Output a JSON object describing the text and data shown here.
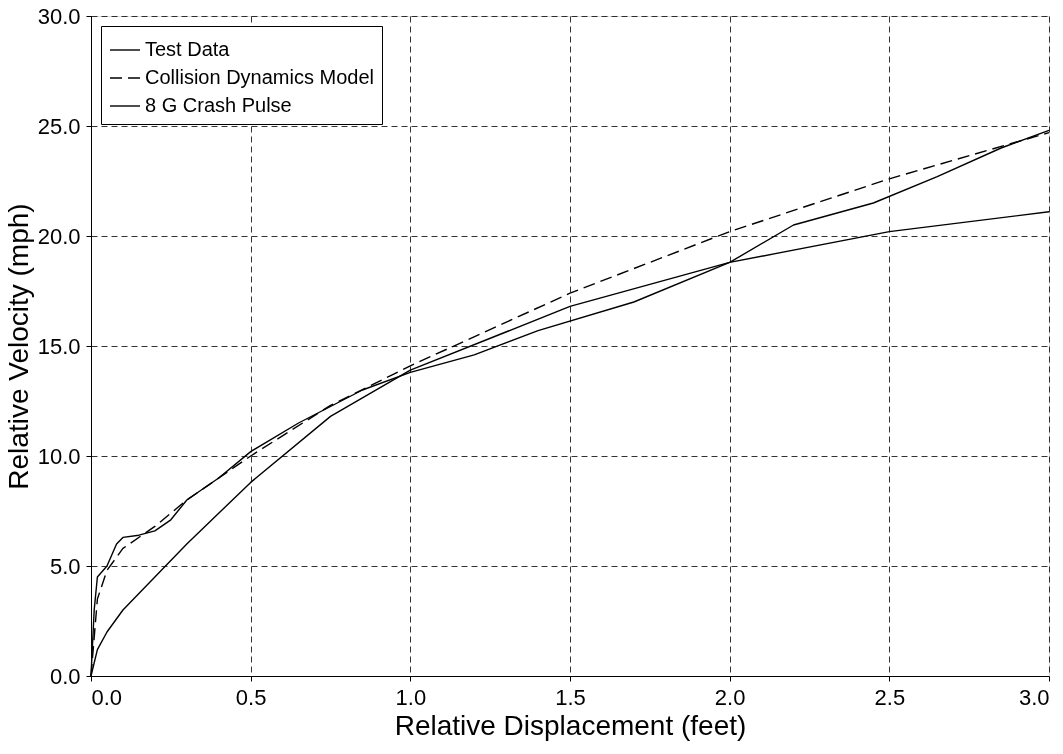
{
  "chart_data": {
    "type": "line",
    "xlabel": "Relative Displacement (feet)",
    "ylabel": "Relative Velocity (mph)",
    "xlim": [
      0,
      3
    ],
    "ylim": [
      0,
      30
    ],
    "xticks": [
      {
        "value": 0,
        "label": "0.0"
      },
      {
        "value": 0.5,
        "label": "0.5"
      },
      {
        "value": 1,
        "label": "1.0"
      },
      {
        "value": 1.5,
        "label": "1.5"
      },
      {
        "value": 2,
        "label": "2.0"
      },
      {
        "value": 2.5,
        "label": "2.5"
      },
      {
        "value": 3,
        "label": "3.0"
      }
    ],
    "yticks": [
      {
        "value": 0,
        "label": "0.0"
      },
      {
        "value": 5,
        "label": "5.0"
      },
      {
        "value": 10,
        "label": "10.0"
      },
      {
        "value": 15,
        "label": "15.0"
      },
      {
        "value": 20,
        "label": "20.0"
      },
      {
        "value": 25,
        "label": "25.0"
      },
      {
        "value": 30,
        "label": "30.0"
      }
    ],
    "grid": true,
    "legend": "top left",
    "marker": "none",
    "series": [
      {
        "name": "Test Data",
        "color": "#000000",
        "line_style": "solid",
        "x": [
          0,
          0.01,
          0.02,
          0.05,
          0.08,
          0.1,
          0.15,
          0.2,
          0.25,
          0.3,
          0.4,
          0.5,
          0.65,
          0.85,
          1.0,
          1.2,
          1.4,
          1.7,
          2.0,
          2.2,
          2.45,
          2.65,
          2.85,
          3.0
        ],
        "values": [
          0,
          3.0,
          4.5,
          5.0,
          6.0,
          6.3,
          6.4,
          6.6,
          7.1,
          8.0,
          9.0,
          10.2,
          11.5,
          13.0,
          13.8,
          14.6,
          15.7,
          17.0,
          18.8,
          20.5,
          21.5,
          22.7,
          24.0,
          24.8
        ]
      },
      {
        "name": "Collision Dynamics Model",
        "color": "#000000",
        "line_style": "dashed",
        "x": [
          0,
          0.02,
          0.05,
          0.1,
          0.2,
          0.3,
          0.5,
          0.75,
          1.0,
          1.5,
          2.0,
          2.5,
          3.0
        ],
        "values": [
          0,
          3.5,
          4.8,
          5.8,
          6.8,
          8.0,
          10.0,
          12.3,
          14.1,
          17.4,
          20.2,
          22.6,
          24.7
        ]
      },
      {
        "name": "8 G Crash Pulse",
        "color": "#000000",
        "line_style": "solid",
        "x": [
          0,
          0.02,
          0.05,
          0.1,
          0.2,
          0.3,
          0.5,
          0.75,
          1.0,
          1.5,
          2.0,
          2.5,
          3.0
        ],
        "values": [
          0,
          1.2,
          2.0,
          3.0,
          4.5,
          6.0,
          8.8,
          11.8,
          13.9,
          16.8,
          18.8,
          20.2,
          21.1
        ]
      }
    ]
  }
}
